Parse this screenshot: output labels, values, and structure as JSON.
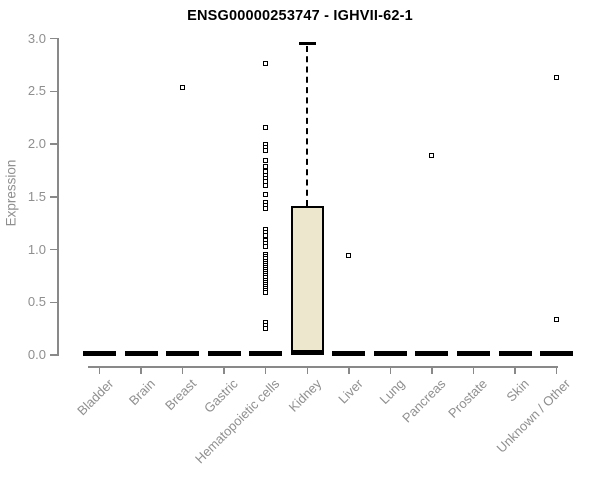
{
  "chart_data": {
    "type": "box",
    "title": "ENSG00000253747 - IGHVII-62-1",
    "ylabel": "Expression",
    "xlabel": "",
    "ylim": [
      0.0,
      3.0
    ],
    "yticks": [
      0.0,
      0.5,
      1.0,
      1.5,
      2.0,
      2.5,
      3.0
    ],
    "grid": false,
    "legend": null,
    "categories": [
      "Bladder",
      "Brain",
      "Breast",
      "Gastric",
      "Hematopoietic cells",
      "Kidney",
      "Liver",
      "Lung",
      "Pancreas",
      "Prostate",
      "Skin",
      "Unknown / Other"
    ],
    "boxes": [
      {
        "category": "Bladder",
        "whisker_low": 0.0,
        "q1": 0.0,
        "median": 0.01,
        "q3": 0.02,
        "whisker_high": 0.02,
        "outliers": []
      },
      {
        "category": "Brain",
        "whisker_low": 0.0,
        "q1": 0.0,
        "median": 0.01,
        "q3": 0.02,
        "whisker_high": 0.02,
        "outliers": []
      },
      {
        "category": "Breast",
        "whisker_low": 0.0,
        "q1": 0.0,
        "median": 0.01,
        "q3": 0.02,
        "whisker_high": 0.02,
        "outliers": [
          2.54
        ]
      },
      {
        "category": "Gastric",
        "whisker_low": 0.0,
        "q1": 0.0,
        "median": 0.01,
        "q3": 0.02,
        "whisker_high": 0.02,
        "outliers": []
      },
      {
        "category": "Hematopoietic cells",
        "whisker_low": 0.0,
        "q1": 0.0,
        "median": 0.01,
        "q3": 0.02,
        "whisker_high": 0.02,
        "outliers": [
          2.76,
          2.16,
          2.0,
          1.97,
          1.94,
          1.84,
          1.79,
          1.74,
          1.7,
          1.67,
          1.64,
          1.61,
          1.52,
          1.45,
          1.42,
          1.39,
          1.19,
          1.16,
          1.13,
          1.09,
          1.06,
          1.03,
          0.95,
          0.93,
          0.91,
          0.89,
          0.87,
          0.85,
          0.83,
          0.81,
          0.79,
          0.77,
          0.75,
          0.73,
          0.71,
          0.69,
          0.67,
          0.65,
          0.63,
          0.61,
          0.59,
          0.31,
          0.28,
          0.25
        ]
      },
      {
        "category": "Kidney",
        "whisker_low": 0.0,
        "q1": 0.02,
        "median": 0.02,
        "q3": 1.41,
        "whisker_high": 2.95,
        "outliers": []
      },
      {
        "category": "Liver",
        "whisker_low": 0.0,
        "q1": 0.0,
        "median": 0.01,
        "q3": 0.02,
        "whisker_high": 0.02,
        "outliers": [
          0.94
        ]
      },
      {
        "category": "Lung",
        "whisker_low": 0.0,
        "q1": 0.0,
        "median": 0.01,
        "q3": 0.02,
        "whisker_high": 0.02,
        "outliers": []
      },
      {
        "category": "Pancreas",
        "whisker_low": 0.0,
        "q1": 0.0,
        "median": 0.01,
        "q3": 0.02,
        "whisker_high": 0.02,
        "outliers": [
          1.89
        ]
      },
      {
        "category": "Prostate",
        "whisker_low": 0.0,
        "q1": 0.0,
        "median": 0.01,
        "q3": 0.02,
        "whisker_high": 0.02,
        "outliers": []
      },
      {
        "category": "Skin",
        "whisker_low": 0.0,
        "q1": 0.0,
        "median": 0.01,
        "q3": 0.02,
        "whisker_high": 0.02,
        "outliers": []
      },
      {
        "category": "Unknown / Other",
        "whisker_low": 0.0,
        "q1": 0.0,
        "median": 0.01,
        "q3": 0.02,
        "whisker_high": 0.02,
        "outliers": [
          2.63,
          0.34
        ]
      }
    ],
    "colors": {
      "box_fill": "#ece7cd",
      "box_border": "#000000",
      "median": "#000000",
      "axis": "#898989",
      "tick_text": "#8f8f8f",
      "title_text": "#000000",
      "background": "#ffffff"
    }
  }
}
